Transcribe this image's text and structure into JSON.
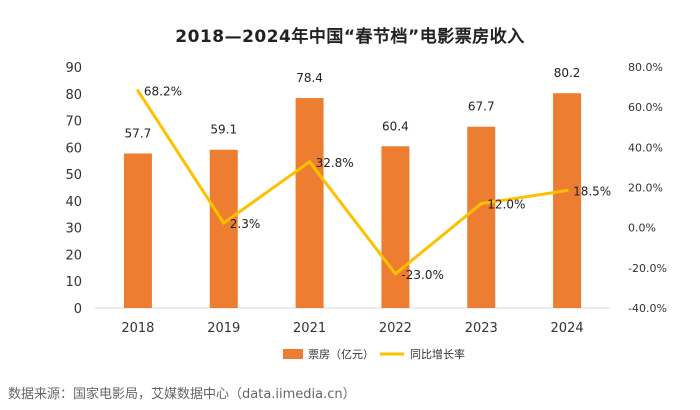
{
  "chart_data": {
    "type": "bar",
    "title": "2018—2024年中国“春节档”电影票房收入",
    "categories": [
      "2018",
      "2019",
      "2021",
      "2022",
      "2023",
      "2024"
    ],
    "series": [
      {
        "name": "票房（亿元）",
        "type": "bar",
        "axis": "left",
        "values": [
          57.7,
          59.1,
          78.4,
          60.4,
          67.7,
          80.2
        ],
        "labels": [
          "57.7",
          "59.1",
          "78.4",
          "60.4",
          "67.7",
          "80.2"
        ]
      },
      {
        "name": "同比增长率",
        "type": "line",
        "axis": "right",
        "values": [
          68.2,
          2.3,
          32.8,
          -23.0,
          12.0,
          18.5
        ],
        "labels": [
          "68.2%",
          "2.3%",
          "32.8%",
          "-23.0%",
          "12.0%",
          "18.5%"
        ]
      }
    ],
    "ylim": [
      0,
      90
    ],
    "yticks": [
      "0",
      "10",
      "20",
      "30",
      "40",
      "50",
      "60",
      "70",
      "80",
      "90"
    ],
    "y2lim": [
      -40,
      80
    ],
    "y2ticks": [
      "-40.0%",
      "-20.0%",
      "0.0%",
      "20.0%",
      "40.0%",
      "60.0%",
      "80.0%"
    ],
    "legend_position": "bottom",
    "grid": false
  },
  "colors": {
    "bar": "#ED7D31",
    "line": "#FFC000",
    "axis": "#D9D9D9"
  },
  "source": "数据来源：国家电影局，艾媒数据中心（data.iimedia.cn）"
}
